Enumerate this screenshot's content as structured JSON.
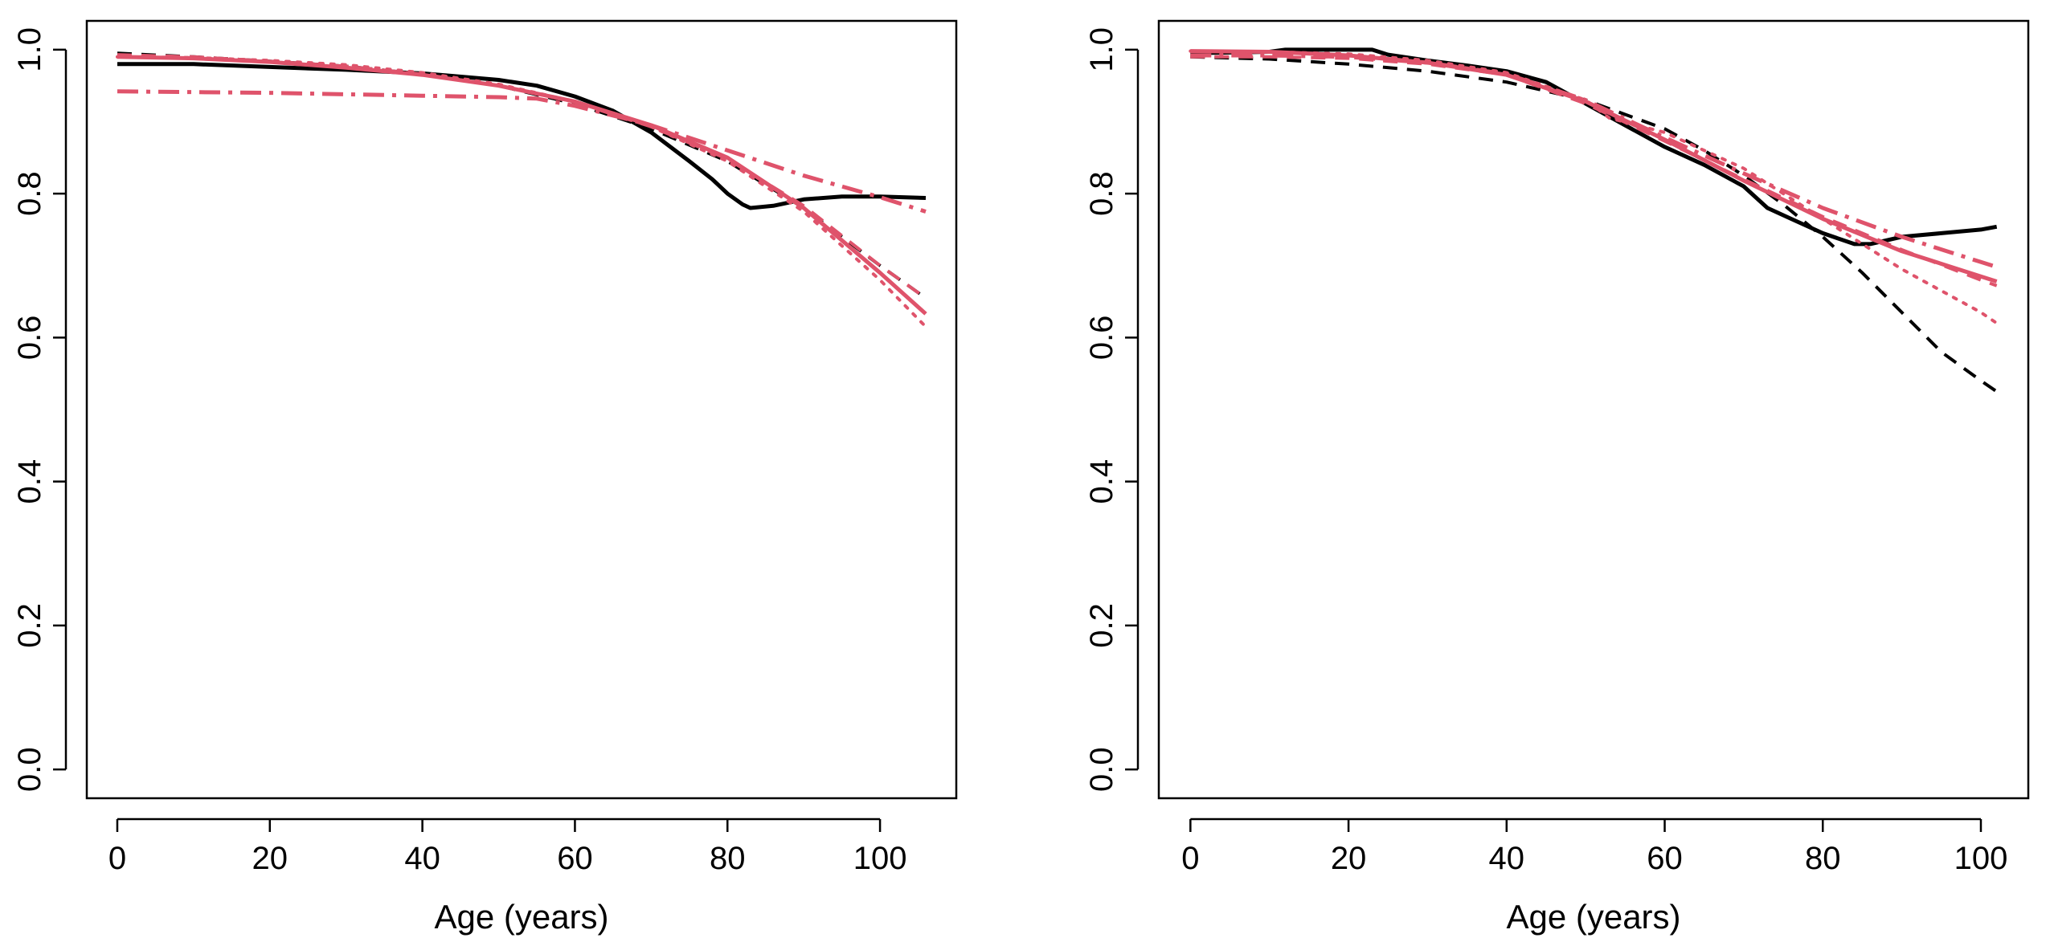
{
  "chart_data": [
    {
      "type": "line",
      "title": "",
      "xlabel": "Age (years)",
      "ylabel": "",
      "xlim": [
        -4,
        110
      ],
      "ylim": [
        -0.04,
        1.04
      ],
      "xticks": [
        0,
        20,
        40,
        60,
        80,
        100
      ],
      "yticks": [
        0.0,
        0.2,
        0.4,
        0.6,
        0.8,
        1.0
      ],
      "xtick_labels": [
        "0",
        "20",
        "40",
        "60",
        "80",
        "100"
      ],
      "ytick_labels": [
        "0.0",
        "0.2",
        "0.4",
        "0.6",
        "0.8",
        "1.0"
      ],
      "grid": false,
      "legend": "none",
      "series": [
        {
          "color": "#000000",
          "dash": "solid",
          "width": 5,
          "x": [
            0,
            10,
            20,
            30,
            40,
            50,
            55,
            60,
            65,
            70,
            75,
            78,
            80,
            82,
            83,
            86,
            90,
            95,
            100,
            106
          ],
          "y": [
            0.98,
            0.98,
            0.976,
            0.972,
            0.967,
            0.958,
            0.95,
            0.935,
            0.915,
            0.885,
            0.845,
            0.82,
            0.8,
            0.785,
            0.78,
            0.783,
            0.792,
            0.796,
            0.796,
            0.794
          ]
        },
        {
          "color": "#000000",
          "dash": "dashed",
          "width": 4,
          "x": [
            0,
            10,
            20,
            30,
            40,
            50,
            60,
            70,
            80,
            90,
            100,
            106
          ],
          "y": [
            0.995,
            0.99,
            0.984,
            0.977,
            0.966,
            0.95,
            0.925,
            0.89,
            0.845,
            0.78,
            0.7,
            0.655
          ]
        },
        {
          "color": "#DF536B",
          "dash": "solid",
          "width": 5,
          "x": [
            0,
            10,
            20,
            30,
            40,
            50,
            60,
            70,
            80,
            90,
            100,
            106
          ],
          "y": [
            0.99,
            0.988,
            0.983,
            0.975,
            0.965,
            0.95,
            0.928,
            0.895,
            0.85,
            0.78,
            0.69,
            0.633
          ]
        },
        {
          "color": "#DF536B",
          "dash": "dashed",
          "width": 4,
          "x": [
            0,
            10,
            20,
            30,
            40,
            50,
            60,
            70,
            80,
            90,
            100,
            106
          ],
          "y": [
            0.993,
            0.99,
            0.984,
            0.977,
            0.966,
            0.95,
            0.927,
            0.893,
            0.848,
            0.783,
            0.7,
            0.655
          ]
        },
        {
          "color": "#DF536B",
          "dash": "dotted",
          "width": 4,
          "x": [
            0,
            10,
            20,
            30,
            40,
            50,
            60,
            70,
            80,
            90,
            100,
            106
          ],
          "y": [
            0.99,
            0.989,
            0.985,
            0.979,
            0.968,
            0.952,
            0.928,
            0.893,
            0.845,
            0.775,
            0.68,
            0.615
          ]
        },
        {
          "color": "#DF536B",
          "dash": "dashdot",
          "width": 5,
          "x": [
            0,
            10,
            20,
            30,
            40,
            50,
            55,
            60,
            70,
            80,
            90,
            100,
            106
          ],
          "y": [
            0.942,
            0.941,
            0.94,
            0.938,
            0.936,
            0.934,
            0.932,
            0.922,
            0.895,
            0.86,
            0.825,
            0.795,
            0.775
          ]
        }
      ]
    },
    {
      "type": "line",
      "title": "",
      "xlabel": "Age (years)",
      "ylabel": "",
      "xlim": [
        -4,
        106
      ],
      "ylim": [
        -0.04,
        1.04
      ],
      "xticks": [
        0,
        20,
        40,
        60,
        80,
        100
      ],
      "yticks": [
        0.0,
        0.2,
        0.4,
        0.6,
        0.8,
        1.0
      ],
      "xtick_labels": [
        "0",
        "20",
        "40",
        "60",
        "80",
        "100"
      ],
      "ytick_labels": [
        "0.0",
        "0.2",
        "0.4",
        "0.6",
        "0.8",
        "1.0"
      ],
      "grid": false,
      "legend": "none",
      "series": [
        {
          "color": "#000000",
          "dash": "solid",
          "width": 5,
          "x": [
            0,
            5,
            10,
            12,
            15,
            20,
            23,
            25,
            30,
            35,
            40,
            45,
            50,
            55,
            60,
            65,
            70,
            73,
            76,
            80,
            84,
            86,
            90,
            95,
            100,
            102
          ],
          "y": [
            0.995,
            0.996,
            0.997,
            1.0,
            1.0,
            1.0,
            1.0,
            0.993,
            0.985,
            0.978,
            0.97,
            0.955,
            0.925,
            0.895,
            0.865,
            0.84,
            0.81,
            0.78,
            0.765,
            0.745,
            0.73,
            0.73,
            0.74,
            0.745,
            0.75,
            0.754
          ]
        },
        {
          "color": "#000000",
          "dash": "dashed",
          "width": 4,
          "x": [
            0,
            10,
            20,
            30,
            40,
            50,
            55,
            60,
            65,
            70,
            75,
            80,
            85,
            90,
            95,
            100,
            102
          ],
          "y": [
            0.99,
            0.987,
            0.98,
            0.97,
            0.955,
            0.93,
            0.91,
            0.89,
            0.86,
            0.825,
            0.785,
            0.74,
            0.69,
            0.635,
            0.58,
            0.54,
            0.525
          ]
        },
        {
          "color": "#DF536B",
          "dash": "solid",
          "width": 5,
          "x": [
            0,
            10,
            20,
            30,
            40,
            50,
            60,
            70,
            80,
            90,
            100,
            102
          ],
          "y": [
            0.998,
            0.997,
            0.992,
            0.982,
            0.965,
            0.928,
            0.875,
            0.818,
            0.765,
            0.72,
            0.685,
            0.678
          ]
        },
        {
          "color": "#DF536B",
          "dash": "dashed",
          "width": 4,
          "x": [
            0,
            10,
            20,
            30,
            40,
            50,
            60,
            70,
            80,
            90,
            100,
            102
          ],
          "y": [
            0.99,
            0.99,
            0.988,
            0.98,
            0.965,
            0.925,
            0.873,
            0.82,
            0.768,
            0.722,
            0.68,
            0.672
          ]
        },
        {
          "color": "#DF536B",
          "dash": "dotted",
          "width": 4,
          "x": [
            0,
            10,
            20,
            30,
            40,
            50,
            53,
            60,
            70,
            80,
            90,
            100,
            102
          ],
          "y": [
            0.998,
            0.997,
            0.994,
            0.985,
            0.968,
            0.93,
            0.905,
            0.885,
            0.835,
            0.765,
            0.695,
            0.635,
            0.62
          ]
        },
        {
          "color": "#DF536B",
          "dash": "dashdot",
          "width": 5,
          "x": [
            0,
            10,
            20,
            30,
            40,
            50,
            60,
            70,
            80,
            90,
            100,
            102
          ],
          "y": [
            0.992,
            0.992,
            0.99,
            0.982,
            0.966,
            0.93,
            0.878,
            0.828,
            0.78,
            0.74,
            0.705,
            0.698
          ]
        }
      ]
    }
  ]
}
